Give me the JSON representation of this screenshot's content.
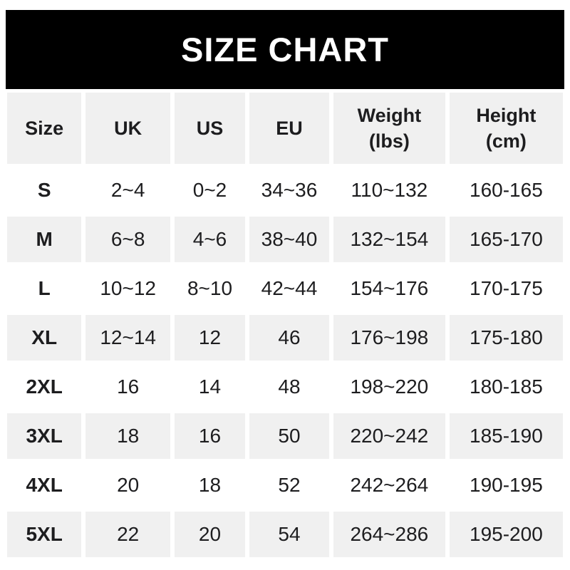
{
  "title": "SIZE CHART",
  "chart_data": {
    "type": "table",
    "title": "SIZE CHART",
    "columns": [
      {
        "id": "size",
        "label": "Size"
      },
      {
        "id": "uk",
        "label": "UK"
      },
      {
        "id": "us",
        "label": "US"
      },
      {
        "id": "eu",
        "label": "EU"
      },
      {
        "id": "weight",
        "label": "Weight",
        "sublabel": "(lbs)"
      },
      {
        "id": "height",
        "label": "Height",
        "sublabel": "(cm)"
      }
    ],
    "rows": [
      [
        "S",
        "2~4",
        "0~2",
        "34~36",
        "110~132",
        "160-165"
      ],
      [
        "M",
        "6~8",
        "4~6",
        "38~40",
        "132~154",
        "165-170"
      ],
      [
        "L",
        "10~12",
        "8~10",
        "42~44",
        "154~176",
        "170-175"
      ],
      [
        "XL",
        "12~14",
        "12",
        "46",
        "176~198",
        "175-180"
      ],
      [
        "2XL",
        "16",
        "14",
        "48",
        "198~220",
        "180-185"
      ],
      [
        "3XL",
        "18",
        "16",
        "50",
        "220~242",
        "185-190"
      ],
      [
        "4XL",
        "20",
        "18",
        "52",
        "242~264",
        "190-195"
      ],
      [
        "5XL",
        "22",
        "20",
        "54",
        "264~286",
        "195-200"
      ]
    ],
    "layout": {
      "row_striping": "alternating white and light gray, header gray",
      "column_width_percents": [
        13.9,
        15.8,
        13.2,
        14.9,
        20.9,
        21.2
      ]
    }
  },
  "colors": {
    "banner_bg": "#000000",
    "banner_text": "#ffffff",
    "stripe_bg": "#f0f0f0",
    "cell_text": "#1d1d1f",
    "page_bg": "#ffffff"
  }
}
